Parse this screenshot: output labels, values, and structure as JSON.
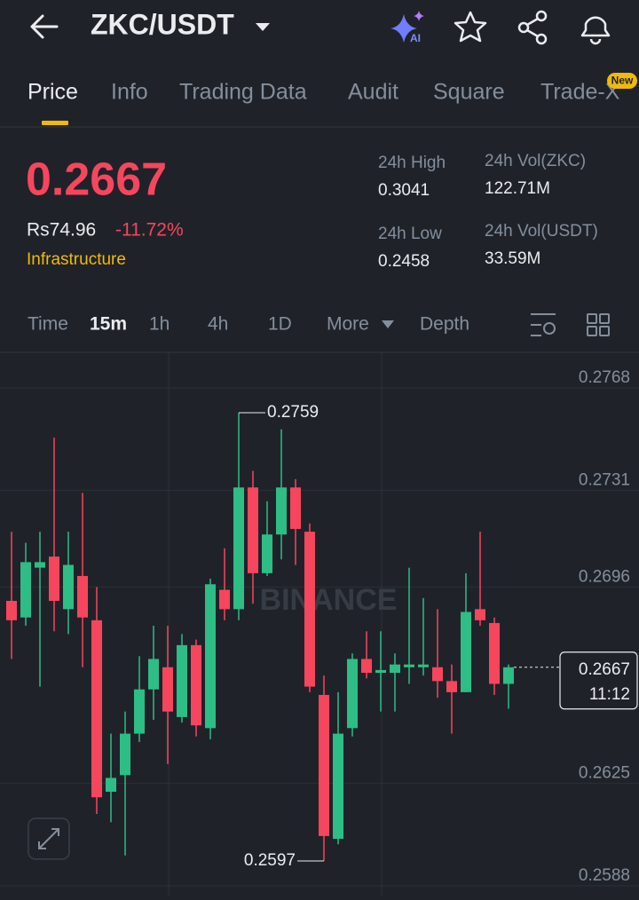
{
  "header": {
    "title": "ZKC/USDT"
  },
  "tabs": {
    "items": [
      "Price",
      "Info",
      "Trading Data",
      "Audit",
      "Square",
      "Trade-X"
    ],
    "badge": "New"
  },
  "price": {
    "last": "0.2667",
    "fiat": "Rs74.96",
    "change": "-11.72%",
    "tag": "Infrastructure"
  },
  "stats": [
    {
      "label": "24h High",
      "value": "0.3041"
    },
    {
      "label": "24h Vol(ZKC)",
      "value": "122.71M"
    },
    {
      "label": "24h Low",
      "value": "0.2458"
    },
    {
      "label": "24h Vol(USDT)",
      "value": "33.59M"
    }
  ],
  "intervals": [
    "Time",
    "15m",
    "1h",
    "4h",
    "1D",
    "More",
    "Depth"
  ],
  "chart_data": {
    "type": "candlestick",
    "watermark": "BINANCE",
    "ylim": [
      0.2588,
      0.2768
    ],
    "yticks": [
      0.2768,
      0.2731,
      0.2696,
      0.2625,
      0.2588
    ],
    "up_color": "#2ebd85",
    "down_color": "#f6465d",
    "max_label": 0.2759,
    "min_label": 0.2597,
    "last_price": 0.2667,
    "countdown": "11:12",
    "open": [
      0.2691,
      0.2685,
      0.2703,
      0.2707,
      0.2688,
      0.27,
      0.2684,
      0.2622,
      0.2628,
      0.2643,
      0.2659,
      0.2667,
      0.2649,
      0.2675,
      0.2645,
      0.2695,
      0.2688,
      0.2732,
      0.2701,
      0.2715,
      0.2732,
      0.2716,
      0.2657,
      0.2605,
      0.2645,
      0.267,
      0.2665,
      0.2665,
      0.2667,
      0.2667,
      0.2667,
      0.2662,
      0.2658,
      0.2688,
      0.2683,
      0.2661
    ],
    "high": [
      0.2716,
      0.2712,
      0.2716,
      0.275,
      0.2716,
      0.273,
      0.2696,
      0.2643,
      0.2651,
      0.2671,
      0.2682,
      0.2682,
      0.2679,
      0.2677,
      0.2699,
      0.271,
      0.2759,
      0.2738,
      0.2727,
      0.2753,
      0.2735,
      0.2719,
      0.2664,
      0.2658,
      0.2672,
      0.268,
      0.268,
      0.2672,
      0.2703,
      0.2692,
      0.2688,
      0.2668,
      0.2701,
      0.2716,
      0.2685,
      0.2668
    ],
    "low": [
      0.267,
      0.2682,
      0.266,
      0.268,
      0.2679,
      0.2667,
      0.2614,
      0.2611,
      0.2599,
      0.264,
      0.2648,
      0.2632,
      0.2647,
      0.2642,
      0.2641,
      0.2684,
      0.2684,
      0.269,
      0.27,
      0.2706,
      0.2704,
      0.2658,
      0.2597,
      0.2603,
      0.2642,
      0.2663,
      0.2651,
      0.2651,
      0.2661,
      0.2664,
      0.2656,
      0.2643,
      0.2658,
      0.2682,
      0.2657,
      0.2652
    ],
    "close": [
      0.2684,
      0.2705,
      0.2705,
      0.2691,
      0.2704,
      0.2685,
      0.262,
      0.2627,
      0.2643,
      0.2659,
      0.267,
      0.2651,
      0.2675,
      0.2646,
      0.2697,
      0.2688,
      0.2732,
      0.2701,
      0.2715,
      0.2732,
      0.2717,
      0.266,
      0.2606,
      0.2643,
      0.267,
      0.2665,
      0.2666,
      0.2668,
      0.2668,
      0.2668,
      0.2662,
      0.2658,
      0.2687,
      0.2684,
      0.2661,
      0.2667
    ]
  }
}
